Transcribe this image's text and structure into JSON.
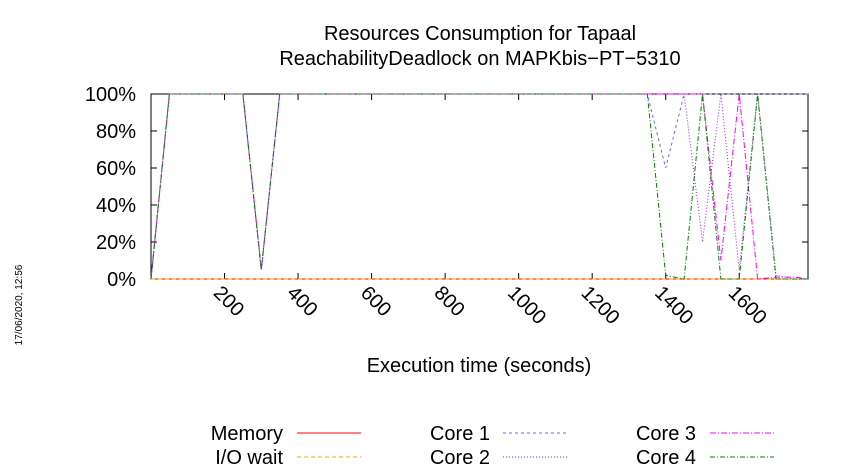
{
  "chart_data": {
    "type": "line",
    "title": "Resources Consumption for Tapaal",
    "subtitle": "ReachabilityDeadlock on MAPKbis−PT−5310",
    "xlabel": "Execution time (seconds)",
    "ylabel": "",
    "side_label": "17/06/2020, 12:56",
    "xlim": [
      0,
      1787
    ],
    "ylim": [
      0,
      100
    ],
    "x_ticks": [
      200,
      400,
      600,
      800,
      1000,
      1200,
      1400,
      1600
    ],
    "y_ticks": [
      0,
      20,
      40,
      60,
      80,
      100
    ],
    "y_tick_labels": [
      "0%",
      "20%",
      "40%",
      "60%",
      "80%",
      "100%"
    ],
    "grid": false,
    "legend_position": "bottom",
    "series": [
      {
        "name": "Memory",
        "color": "#ff0000",
        "dash": "",
        "x": [
          0,
          50,
          250,
          300,
          350,
          1787
        ],
        "y": [
          0,
          0,
          0,
          0,
          0,
          0
        ]
      },
      {
        "name": "I/O wait",
        "color": "#ffa500",
        "dash": "4,3",
        "x": [
          0,
          50,
          250,
          300,
          350,
          1787
        ],
        "y": [
          0,
          0,
          0,
          0,
          0,
          0
        ]
      },
      {
        "name": "Core 1",
        "color": "#6a6aee",
        "dash": "3,3",
        "x": [
          0,
          50,
          250,
          300,
          350,
          1350,
          1400,
          1450,
          1500,
          1550,
          1600,
          1650,
          1700,
          1787
        ],
        "y": [
          0,
          100,
          100,
          5,
          100,
          100,
          60,
          100,
          100,
          100,
          100,
          100,
          100,
          100
        ]
      },
      {
        "name": "Core 2",
        "color": "#a020f0",
        "dash": "1,2",
        "x": [
          0,
          50,
          250,
          300,
          350,
          1450,
          1500,
          1550,
          1600,
          1650,
          1700,
          1750,
          1787
        ],
        "y": [
          0,
          100,
          100,
          5,
          100,
          100,
          20,
          100,
          5,
          100,
          2,
          0,
          0
        ]
      },
      {
        "name": "Core 3",
        "color": "#ff00ff",
        "dash": "6,2,1,2",
        "x": [
          0,
          50,
          250,
          300,
          350,
          1450,
          1500,
          1550,
          1600,
          1650,
          1700,
          1750,
          1787
        ],
        "y": [
          0,
          100,
          100,
          5,
          100,
          100,
          100,
          10,
          100,
          0,
          1,
          1,
          0
        ]
      },
      {
        "name": "Core 4",
        "color": "#008000",
        "dash": "5,2,1,2",
        "x": [
          0,
          50,
          250,
          300,
          350,
          1350,
          1400,
          1450,
          1500,
          1550,
          1600,
          1650,
          1700,
          1787
        ],
        "y": [
          0,
          100,
          100,
          5,
          100,
          100,
          2,
          0,
          100,
          0,
          0,
          100,
          0,
          0
        ]
      }
    ]
  }
}
